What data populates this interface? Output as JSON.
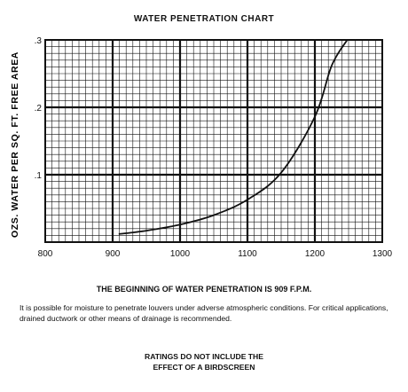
{
  "chart_data": {
    "type": "line",
    "title": "WATER PENETRATION CHART",
    "ylabel": "OZS. WATER PER SQ. FT. FREE AREA",
    "xlabel": "",
    "xlim": [
      800,
      1300
    ],
    "ylim": [
      0,
      0.3
    ],
    "x_ticks": [
      800,
      900,
      1000,
      1100,
      1200,
      1300
    ],
    "x_tick_labels": [
      "800",
      "900",
      "1000",
      "1100",
      "1200",
      "1300"
    ],
    "y_ticks": [
      0.1,
      0.2,
      0.3
    ],
    "y_tick_labels": [
      ".1",
      ".2",
      ".3"
    ],
    "grid": true,
    "series": [
      {
        "color": "#111111",
        "x": [
          909,
          950,
          1000,
          1050,
          1100,
          1150,
          1200,
          1225,
          1248
        ],
        "y": [
          0.012,
          0.017,
          0.026,
          0.04,
          0.063,
          0.103,
          0.186,
          0.262,
          0.3
        ]
      }
    ]
  },
  "notes": {
    "heading": "THE BEGINNING OF WATER PENETRATION IS 909 F.P.M.",
    "body": "It is possible for moisture to penetrate louvers under adverse atmospheric conditions. For critical applications, drained ductwork or other means of drainage is recommended.",
    "footer_line1": "RATINGS DO NOT INCLUDE THE",
    "footer_line2": "EFFECT OF A BIRDSCREEN"
  }
}
